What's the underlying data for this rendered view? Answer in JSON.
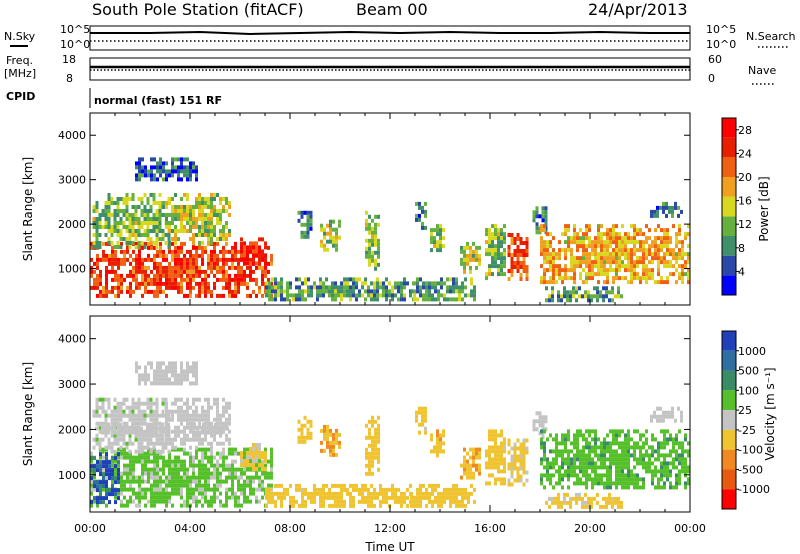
{
  "header": {
    "station": "South Pole Station (fitACF)",
    "beam": "Beam 00",
    "date": "24/Apr/2013"
  },
  "status_panel": {
    "nsky_label": "N.Sky",
    "nsearch_label": "N.Search",
    "noise_ticks": [
      "10^5",
      "10^0"
    ],
    "freq_label": "Freq.",
    "freq_unit": "[MHz]",
    "freq_ticks": [
      "18",
      "8"
    ],
    "nave_label": "Nave",
    "nave_ticks": [
      "60",
      "0"
    ],
    "cpid_label": "CPID",
    "cpid_text": "normal (fast) 151 RF"
  },
  "colors": {
    "power_scale": [
      "#0000ff",
      "#2a48a8",
      "#3f8f6a",
      "#66b040",
      "#d8d820",
      "#f0a020",
      "#f06010",
      "#e82000",
      "#ff0000"
    ],
    "velocity_scale": [
      "#2040b8",
      "#2e6ea0",
      "#3a8c66",
      "#56c02a",
      "#c4c4c4",
      "#f0c430",
      "#f08a20",
      "#e85a10",
      "#ff0000"
    ]
  },
  "chart_data": [
    {
      "type": "heatmap",
      "title": "",
      "ylabel": "Slant Range [km]",
      "xlabel": "",
      "xlim": [
        "00:00",
        "24:00"
      ],
      "ylim": [
        180,
        4500
      ],
      "yticks": [
        1000,
        2000,
        3000,
        4000
      ],
      "colorbar": {
        "label": "Power [dB]",
        "ticks": [
          "4",
          "8",
          "12",
          "16",
          "20",
          "24",
          "28"
        ],
        "range": [
          0,
          30
        ]
      },
      "echo_regions": [
        {
          "t0": 0.0,
          "t1": 7.3,
          "r0": 350,
          "r1": 1600,
          "value": 24
        },
        {
          "t0": 0.1,
          "t1": 3.2,
          "r0": 1500,
          "r1": 2700,
          "value": 12
        },
        {
          "t0": 1.8,
          "t1": 4.3,
          "r0": 3000,
          "r1": 3500,
          "value": 6
        },
        {
          "t0": 3.0,
          "t1": 5.6,
          "r0": 1600,
          "r1": 2700,
          "value": 14
        },
        {
          "t0": 6.0,
          "t1": 7.0,
          "r0": 1100,
          "r1": 1700,
          "value": 26
        },
        {
          "t0": 7.0,
          "t1": 13.0,
          "r0": 300,
          "r1": 800,
          "value": 10
        },
        {
          "t0": 8.3,
          "t1": 8.8,
          "r0": 1700,
          "r1": 2300,
          "value": 8
        },
        {
          "t0": 9.2,
          "t1": 10.0,
          "r0": 1400,
          "r1": 2100,
          "value": 14
        },
        {
          "t0": 11.0,
          "t1": 11.5,
          "r0": 1000,
          "r1": 2300,
          "value": 12
        },
        {
          "t0": 13.0,
          "t1": 13.4,
          "r0": 1900,
          "r1": 2500,
          "value": 8
        },
        {
          "t0": 13.6,
          "t1": 14.2,
          "r0": 1400,
          "r1": 2000,
          "value": 12
        },
        {
          "t0": 12.8,
          "t1": 15.4,
          "r0": 300,
          "r1": 800,
          "value": 10
        },
        {
          "t0": 14.8,
          "t1": 15.6,
          "r0": 900,
          "r1": 1600,
          "value": 14
        },
        {
          "t0": 15.8,
          "t1": 16.6,
          "r0": 800,
          "r1": 2000,
          "value": 12
        },
        {
          "t0": 16.7,
          "t1": 17.5,
          "r0": 800,
          "r1": 1800,
          "value": 22
        },
        {
          "t0": 17.7,
          "t1": 18.3,
          "r0": 1800,
          "r1": 2400,
          "value": 8
        },
        {
          "t0": 18.0,
          "t1": 24.0,
          "r0": 700,
          "r1": 2000,
          "value": 18
        },
        {
          "t0": 18.2,
          "t1": 21.3,
          "r0": 300,
          "r1": 600,
          "value": 10
        },
        {
          "t0": 22.4,
          "t1": 23.6,
          "r0": 2200,
          "r1": 2500,
          "value": 8
        }
      ]
    },
    {
      "type": "heatmap",
      "title": "",
      "ylabel": "Slant Range [km]",
      "xlabel": "Time UT",
      "xlim": [
        "00:00",
        "24:00"
      ],
      "ylim": [
        180,
        4500
      ],
      "xticks": [
        "00:00",
        "04:00",
        "08:00",
        "12:00",
        "16:00",
        "20:00",
        "00:00"
      ],
      "yticks": [
        1000,
        2000,
        3000,
        4000
      ],
      "colorbar": {
        "label": "Velocity [m s⁻¹]",
        "ticks": [
          "1000",
          "500",
          "100",
          "25",
          "-25",
          "-100",
          "-500",
          "-1000"
        ],
        "range": [
          1000,
          -1000
        ]
      },
      "echo_regions": [
        {
          "t0": 0.0,
          "t1": 7.3,
          "r0": 350,
          "r1": 1600,
          "value": 150
        },
        {
          "t0": 0.0,
          "t1": 1.2,
          "r0": 400,
          "r1": 1500,
          "value": 800
        },
        {
          "t0": 0.1,
          "t1": 3.2,
          "r0": 1500,
          "r1": 2700,
          "value": 80
        },
        {
          "t0": 0.2,
          "t1": 3.2,
          "r0": 1900,
          "r1": 2150,
          "value": 0
        },
        {
          "t0": 1.8,
          "t1": 4.3,
          "r0": 3000,
          "r1": 3500,
          "value": -40
        },
        {
          "t0": 3.0,
          "t1": 5.6,
          "r0": 1600,
          "r1": 2700,
          "value": 60
        },
        {
          "t0": 4.0,
          "t1": 5.5,
          "r0": 1900,
          "r1": 2150,
          "value": 0
        },
        {
          "t0": 6.0,
          "t1": 7.0,
          "r0": 1100,
          "r1": 1700,
          "value": -150
        },
        {
          "t0": 7.0,
          "t1": 13.0,
          "r0": 300,
          "r1": 800,
          "value": -200
        },
        {
          "t0": 8.3,
          "t1": 8.8,
          "r0": 1700,
          "r1": 2300,
          "value": -200
        },
        {
          "t0": 9.2,
          "t1": 10.0,
          "r0": 1400,
          "r1": 2100,
          "value": -300
        },
        {
          "t0": 11.0,
          "t1": 11.5,
          "r0": 1000,
          "r1": 2300,
          "value": -200
        },
        {
          "t0": 13.0,
          "t1": 13.4,
          "r0": 1900,
          "r1": 2500,
          "value": -150
        },
        {
          "t0": 13.6,
          "t1": 14.2,
          "r0": 1400,
          "r1": 2000,
          "value": -250
        },
        {
          "t0": 12.8,
          "t1": 15.4,
          "r0": 300,
          "r1": 800,
          "value": -200
        },
        {
          "t0": 14.8,
          "t1": 15.6,
          "r0": 900,
          "r1": 1600,
          "value": -300
        },
        {
          "t0": 15.8,
          "t1": 16.6,
          "r0": 800,
          "r1": 2000,
          "value": -200
        },
        {
          "t0": 16.7,
          "t1": 17.5,
          "r0": 800,
          "r1": 1800,
          "value": -150
        },
        {
          "t0": 17.7,
          "t1": 18.3,
          "r0": 1800,
          "r1": 2400,
          "value": 50
        },
        {
          "t0": 18.0,
          "t1": 24.0,
          "r0": 700,
          "r1": 2000,
          "value": 250
        },
        {
          "t0": 18.2,
          "t1": 21.3,
          "r0": 300,
          "r1": 600,
          "value": -150
        },
        {
          "t0": 22.4,
          "t1": 23.6,
          "r0": 2200,
          "r1": 2500,
          "value": 0
        }
      ]
    }
  ]
}
